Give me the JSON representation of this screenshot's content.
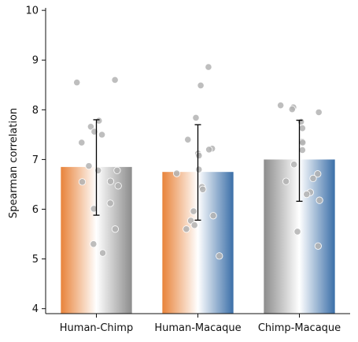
{
  "chart_data": {
    "type": "bar",
    "title": "",
    "xlabel": "",
    "ylabel": "Spearman correlation",
    "ylim": [
      3.9,
      10.05
    ],
    "yticks": [
      4,
      5,
      6,
      7,
      8,
      9,
      10
    ],
    "grid": false,
    "categories": [
      "Human-Chimp",
      "Human-Macaque",
      "Chimp-Macaque"
    ],
    "values": [
      6.85,
      6.75,
      7.0
    ],
    "error": [
      {
        "low": 5.88,
        "high": 7.8
      },
      {
        "low": 5.78,
        "high": 7.7
      },
      {
        "low": 6.16,
        "high": 7.79
      }
    ],
    "gradients": [
      [
        "#e8833a",
        "#ffffff",
        "#8c8c8c"
      ],
      [
        "#e8833a",
        "#ffffff",
        "#3b6fa8"
      ],
      [
        "#8c8c8c",
        "#ffffff",
        "#3b6fa8"
      ]
    ],
    "point_color": "#b3b3b3",
    "points": [
      [
        8.6,
        8.55,
        7.78,
        7.66,
        7.56,
        7.5,
        7.34,
        6.87,
        6.78,
        6.78,
        6.56,
        6.55,
        6.47,
        6.12,
        6.01,
        5.6,
        5.3,
        5.12
      ],
      [
        8.86,
        8.49,
        7.84,
        7.4,
        7.22,
        7.2,
        7.12,
        7.08,
        6.8,
        6.72,
        6.45,
        6.4,
        5.96,
        5.87,
        5.77,
        5.68,
        5.6,
        5.06
      ],
      [
        8.09,
        8.05,
        8.01,
        7.95,
        7.76,
        7.63,
        7.36,
        7.34,
        7.19,
        6.9,
        6.71,
        6.62,
        6.56,
        6.34,
        6.3,
        6.18,
        5.55,
        5.26
      ]
    ]
  }
}
